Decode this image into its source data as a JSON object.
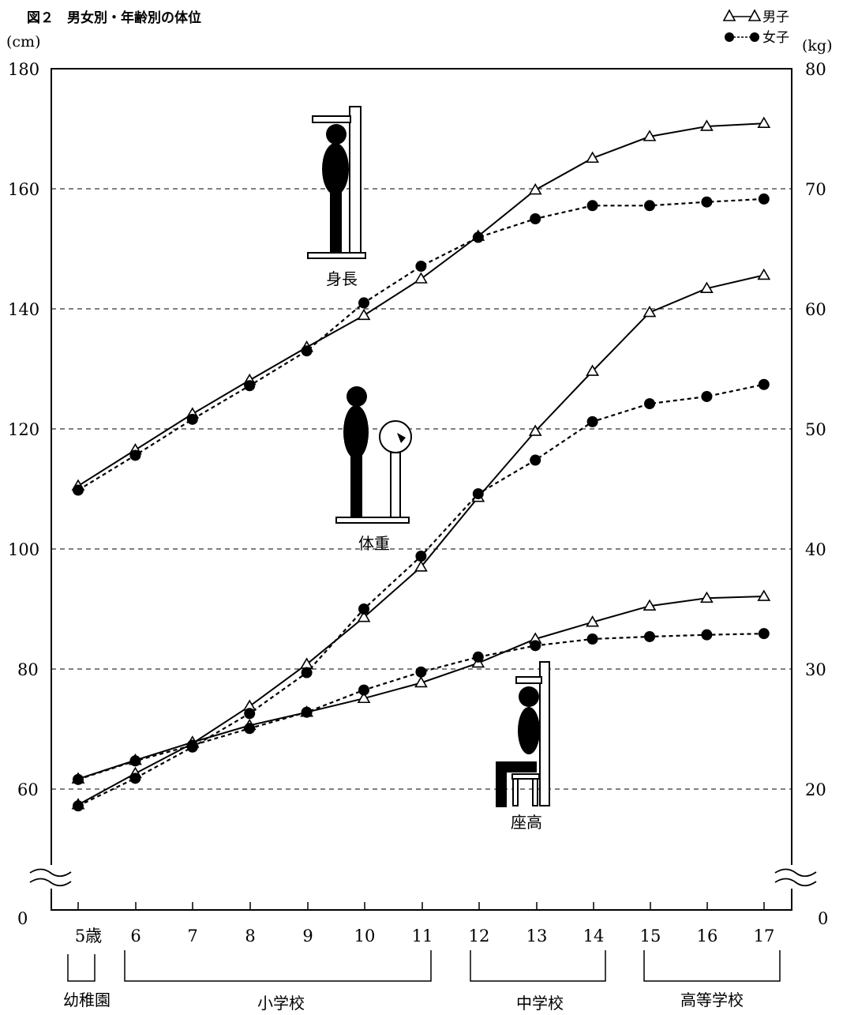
{
  "figure_title": "図２　男女別・年齢別の体位",
  "legend": {
    "male": "男子",
    "female": "女子",
    "placement": "top-right"
  },
  "axes": {
    "left_unit": "(cm)",
    "right_unit": "(kg)",
    "left_ticks": [
      "180",
      "160",
      "140",
      "120",
      "100",
      "80",
      "60",
      "0"
    ],
    "right_ticks": [
      "80",
      "70",
      "60",
      "50",
      "40",
      "30",
      "20",
      "0"
    ],
    "x_ticks": [
      "5歳",
      "6",
      "7",
      "8",
      "9",
      "10",
      "11",
      "12",
      "13",
      "14",
      "15",
      "16",
      "17"
    ]
  },
  "school_labels": {
    "kindergarten": "幼稚園",
    "elementary": "小学校",
    "junior_high": "中学校",
    "high_school": "高等学校"
  },
  "figure_labels": {
    "height": "身長",
    "weight": "体重",
    "sitting_height": "座高"
  },
  "colors": {
    "ink": "#000000",
    "background": "#ffffff",
    "gridline": "#000000"
  },
  "chart_data": {
    "type": "line",
    "x": [
      5,
      6,
      7,
      8,
      9,
      10,
      11,
      12,
      13,
      14,
      15,
      16,
      17
    ],
    "left_axis_range_cm": [
      0,
      180
    ],
    "right_axis_range_kg": [
      0,
      80
    ],
    "axis_break": true,
    "grid": "horizontal dashed",
    "series": [
      {
        "name": "男子",
        "measure": "身長",
        "axis": "left",
        "marker": "triangle",
        "values": [
          110.5,
          116.5,
          122.5,
          128.1,
          133.6,
          138.9,
          145.0,
          152.1,
          159.8,
          165.1,
          168.7,
          170.4,
          170.9
        ]
      },
      {
        "name": "女子",
        "measure": "身長",
        "axis": "left",
        "marker": "circle",
        "values": [
          109.8,
          115.6,
          121.6,
          127.2,
          133.0,
          141.0,
          147.1,
          151.9,
          155.0,
          157.2,
          157.2,
          157.8,
          158.3
        ]
      },
      {
        "name": "男子",
        "measure": "体重",
        "axis": "right",
        "marker": "triangle",
        "values": [
          18.7,
          21.3,
          23.8,
          26.9,
          30.4,
          34.3,
          38.5,
          44.3,
          49.8,
          54.8,
          59.7,
          61.7,
          62.8
        ]
      },
      {
        "name": "女子",
        "measure": "体重",
        "axis": "right",
        "marker": "circle",
        "values": [
          18.6,
          20.9,
          23.5,
          26.3,
          29.7,
          35.0,
          39.4,
          44.6,
          47.4,
          50.6,
          52.1,
          52.7,
          53.7
        ]
      },
      {
        "name": "男子",
        "measure": "座高",
        "axis": "left",
        "marker": "triangle",
        "values": [
          61.7,
          64.8,
          67.8,
          70.6,
          72.8,
          75.1,
          77.7,
          81.0,
          85.0,
          87.8,
          90.5,
          91.8,
          92.1
        ]
      },
      {
        "name": "女子",
        "measure": "座高",
        "axis": "left",
        "marker": "circle",
        "values": [
          61.6,
          64.7,
          67.3,
          70.1,
          72.8,
          76.5,
          79.5,
          82.0,
          83.9,
          85.0,
          85.4,
          85.7,
          85.9
        ]
      }
    ]
  }
}
